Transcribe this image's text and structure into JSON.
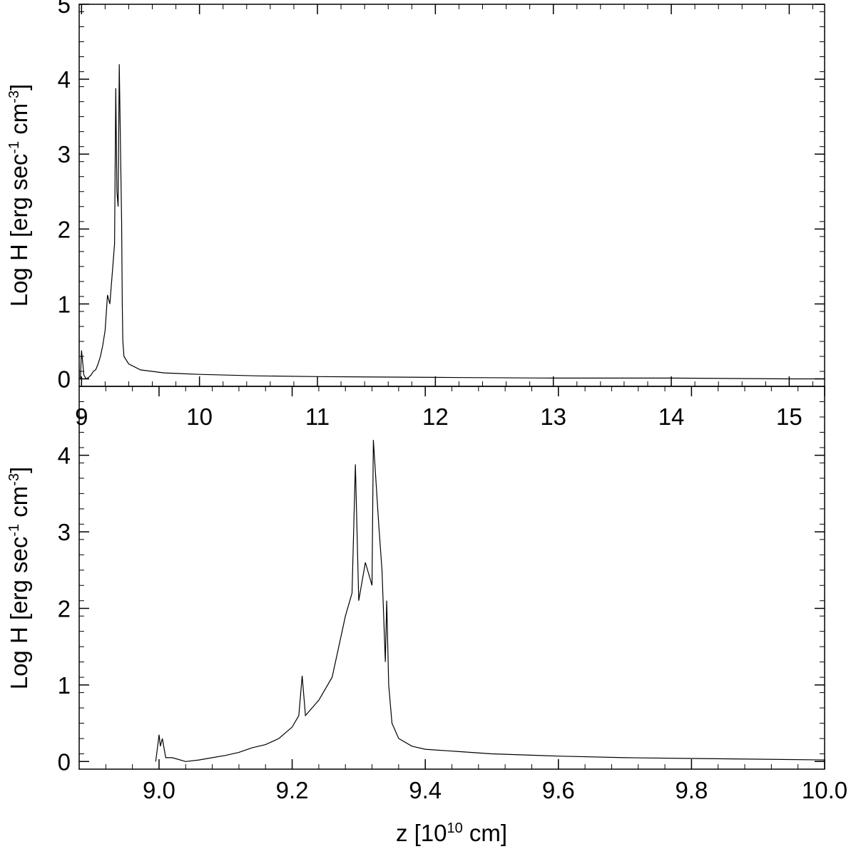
{
  "chart_data": [
    {
      "type": "line",
      "panel": "top",
      "xlim": [
        8.98,
        15.3
      ],
      "ylim": [
        -0.1,
        5.0
      ],
      "xticks": [
        9,
        10,
        11,
        12,
        13,
        14,
        15
      ],
      "xtick_labels": [
        "9",
        "10",
        "11",
        "12",
        "13",
        "14",
        "15"
      ],
      "yticks": [
        0,
        1,
        2,
        3,
        4,
        5
      ],
      "ytick_labels": [
        "0",
        "1",
        "2",
        "3",
        "4",
        "5"
      ],
      "ylabel": {
        "main": "Log H [erg sec",
        "sup1": "-1",
        "mid": " cm",
        "sup2": "-3",
        "end": "]"
      },
      "xlabel": "",
      "grid": false,
      "series": [
        {
          "x": [
            8.99,
            9.0,
            9.02,
            9.04,
            9.06,
            9.08,
            9.1,
            9.12,
            9.14,
            9.16,
            9.18,
            9.2,
            9.22,
            9.24,
            9.26,
            9.28,
            9.29,
            9.3,
            9.31,
            9.32,
            9.33,
            9.34,
            9.345,
            9.35,
            9.36,
            9.4,
            9.5,
            9.7,
            10.0,
            10.5,
            11.0,
            12.0,
            13.0,
            14.0,
            15.0,
            15.3
          ],
          "y": [
            0.0,
            0.38,
            0.05,
            0.0,
            0.02,
            0.05,
            0.1,
            0.12,
            0.2,
            0.3,
            0.45,
            0.65,
            1.12,
            1.0,
            1.4,
            1.8,
            3.88,
            2.5,
            2.3,
            4.2,
            3.1,
            2.1,
            1.0,
            0.5,
            0.3,
            0.2,
            0.12,
            0.08,
            0.06,
            0.04,
            0.03,
            0.02,
            0.01,
            0.01,
            0.0,
            0.0
          ]
        }
      ]
    },
    {
      "type": "line",
      "panel": "bottom",
      "xlim": [
        8.88,
        10.0
      ],
      "ylim": [
        -0.1,
        4.9
      ],
      "xticks": [
        9.0,
        9.2,
        9.4,
        9.6,
        9.8,
        10.0
      ],
      "xtick_labels": [
        "9.0",
        "9.2",
        "9.4",
        "9.6",
        "9.8",
        "10.0"
      ],
      "yticks": [
        0,
        1,
        2,
        3,
        4
      ],
      "ytick_labels": [
        "0",
        "1",
        "2",
        "3",
        "4"
      ],
      "ylabel": {
        "main": "Log H [erg sec",
        "sup1": "-1",
        "mid": " cm",
        "sup2": "-3",
        "end": "]"
      },
      "xlabel": {
        "main": "z [10",
        "sup": "10",
        "end": " cm]"
      },
      "grid": false,
      "series": [
        {
          "x": [
            8.995,
            9.0,
            9.002,
            9.005,
            9.01,
            9.02,
            9.04,
            9.06,
            9.08,
            9.1,
            9.12,
            9.14,
            9.16,
            9.18,
            9.2,
            9.21,
            9.215,
            9.22,
            9.24,
            9.26,
            9.27,
            9.28,
            9.29,
            9.295,
            9.3,
            9.31,
            9.32,
            9.322,
            9.33,
            9.335,
            9.34,
            9.342,
            9.345,
            9.35,
            9.36,
            9.38,
            9.4,
            9.5,
            9.6,
            9.7,
            9.8,
            9.9,
            10.0
          ],
          "y": [
            0.0,
            0.35,
            0.2,
            0.3,
            0.05,
            0.05,
            0.0,
            0.02,
            0.05,
            0.08,
            0.12,
            0.18,
            0.22,
            0.3,
            0.45,
            0.6,
            1.12,
            0.6,
            0.8,
            1.1,
            1.5,
            1.9,
            2.2,
            3.88,
            2.1,
            2.6,
            2.3,
            4.2,
            3.1,
            2.5,
            1.3,
            2.1,
            1.0,
            0.5,
            0.3,
            0.2,
            0.16,
            0.1,
            0.07,
            0.05,
            0.04,
            0.03,
            0.02
          ]
        }
      ]
    }
  ]
}
